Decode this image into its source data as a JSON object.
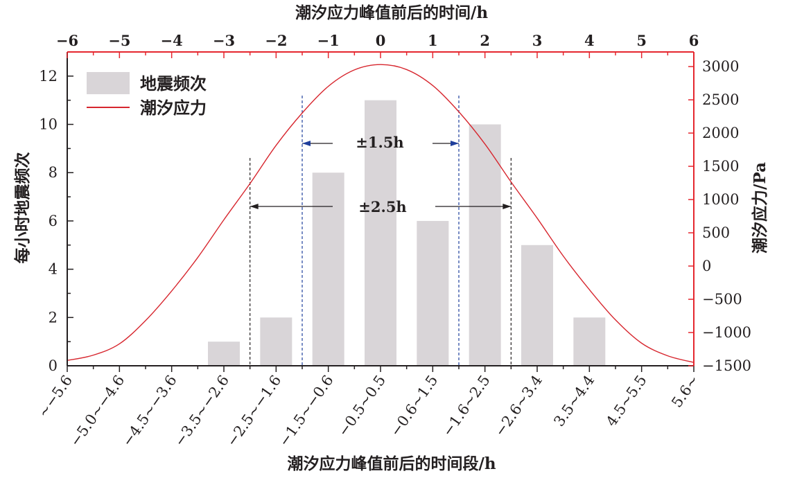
{
  "chart_data": {
    "type": "bar",
    "title": "",
    "top_xlabel": "潮汐应力峰值前后的时间/h",
    "xlabel": "潮汐应力峰值前后的时间段/h",
    "ylabel": "每小时地震频次",
    "y2label": "潮汐应力/Pa",
    "top_xticks": [
      "−6",
      "−5",
      "−4",
      "−3",
      "−2",
      "−1",
      "0",
      "1",
      "2",
      "3",
      "4",
      "5",
      "6"
    ],
    "top_xlim": [
      -6,
      6
    ],
    "categories": [
      "~−5.6",
      "−5.0~−4.6",
      "−4.5~−3.6",
      "−3.5~−2.6",
      "−2.5~−1.6",
      "−1.5~−0.6",
      "−0.5~0.5",
      "−0.6~1.5",
      "−1.6~2.5",
      "−2.6~3.4",
      "3.5~4.4",
      "4.5~5.5",
      "5.6~"
    ],
    "ylim": [
      0,
      13
    ],
    "yticks": [
      "0",
      "2",
      "4",
      "6",
      "8",
      "10",
      "12"
    ],
    "y2lim": [
      -1500,
      3220
    ],
    "y2ticks": [
      "−1500",
      "−1000",
      "−500",
      "0",
      "500",
      "1000",
      "1500",
      "2000",
      "2500",
      "3000"
    ],
    "series": [
      {
        "name": "地震频次",
        "type": "bar",
        "color": "#d9d5d8",
        "x": [
          -3,
          -2,
          -1,
          0,
          1,
          2,
          3,
          4
        ],
        "values": [
          1,
          2,
          8,
          11,
          6,
          10,
          5,
          2
        ]
      },
      {
        "name": "潮汐应力",
        "type": "line",
        "axis": "right",
        "color": "#d7262e",
        "x": [
          -6,
          -5.5,
          -5,
          -4.5,
          -4,
          -3.5,
          -3,
          -2.5,
          -2,
          -1.5,
          -1,
          -0.5,
          0,
          0.5,
          1,
          1.5,
          2,
          2.5,
          3,
          3.5,
          4,
          4.5,
          5,
          5.5,
          6
        ],
        "values": [
          -1420,
          -1340,
          -1170,
          -820,
          -375,
          129,
          696,
          1240,
          1815,
          2302,
          2703,
          2950,
          3030,
          2955,
          2715,
          2320,
          1835,
          1265,
          720,
          150,
          -355,
          -810,
          -1160,
          -1350,
          -1450
        ]
      }
    ],
    "legend": "top-left",
    "annotations": [
      {
        "text": "±1.5h",
        "range": [
          -1.5,
          1.5
        ],
        "color": "#1f3f9c"
      },
      {
        "text": "±2.5h",
        "range": [
          -2.5,
          2.5
        ],
        "color": "#231f20"
      }
    ]
  }
}
